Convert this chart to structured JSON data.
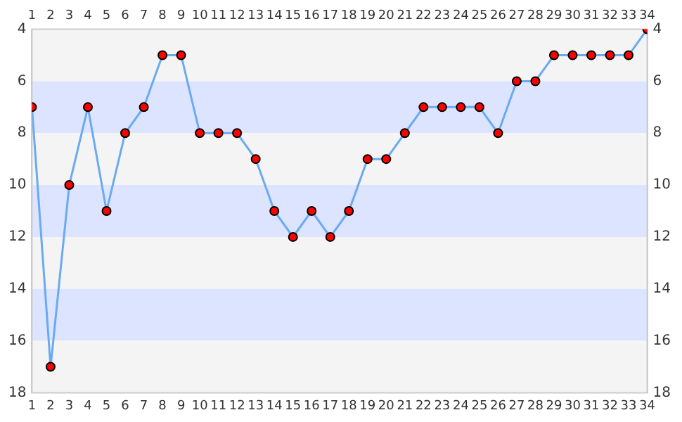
{
  "chart_data": {
    "type": "line",
    "x": [
      1,
      2,
      3,
      4,
      5,
      6,
      7,
      8,
      9,
      10,
      11,
      12,
      13,
      14,
      15,
      16,
      17,
      18,
      19,
      20,
      21,
      22,
      23,
      24,
      25,
      26,
      27,
      28,
      29,
      30,
      31,
      32,
      33,
      34
    ],
    "series": [
      {
        "color": "#6aaaf2",
        "colors": [
          "#ff0000",
          "#ff0000",
          "#ff0000",
          "#ff0000",
          "#ff0000",
          "#ff0000",
          "#ff0000",
          "#ff0000",
          "#ff0000",
          "#ff0000",
          "#ff0000",
          "#ff0000",
          "#ff0000",
          "#ff0000",
          "#ff0000",
          "#ff0000",
          "#ff0000",
          "#ff0000",
          "#ff0000",
          "#ff0000",
          "#ff0000",
          "#ff0000",
          "#ff0000",
          "#ff0000",
          "#ff0000",
          "#ff0000",
          "#ff0000",
          "#ff0000",
          "#ff0000",
          "#ff0000",
          "#ff0000",
          "#ff0000",
          "#ff0000",
          "#ff0000"
        ],
        "values": [
          7,
          17,
          10,
          7,
          11,
          8,
          7,
          5,
          5,
          8,
          8,
          8,
          9,
          11,
          12,
          11,
          12,
          11,
          9,
          9,
          8,
          7,
          7,
          7,
          7,
          8,
          6,
          6,
          5,
          5,
          5,
          5,
          5,
          4
        ]
      }
    ],
    "xlim": [
      1,
      34
    ],
    "xticks": [
      1,
      2,
      3,
      4,
      5,
      6,
      7,
      8,
      9,
      10,
      11,
      12,
      13,
      14,
      15,
      16,
      17,
      18,
      19,
      20,
      21,
      22,
      23,
      24,
      25,
      26,
      27,
      28,
      29,
      30,
      31,
      32,
      33,
      34
    ],
    "x2lim": [
      1,
      34
    ],
    "x2ticks": [
      1,
      2,
      3,
      4,
      5,
      6,
      7,
      8,
      9,
      10,
      11,
      12,
      13,
      14,
      15,
      16,
      17,
      18,
      19,
      20,
      21,
      22,
      23,
      24,
      25,
      26,
      27,
      28,
      29,
      30,
      31,
      32,
      33,
      34
    ],
    "ylim": [
      18,
      4
    ],
    "yticks": [
      4,
      6,
      8,
      10,
      12,
      14,
      16,
      18
    ],
    "y2lim": [
      18,
      4
    ],
    "y2ticks": [
      4,
      6,
      8,
      10,
      12,
      14,
      16,
      18
    ],
    "bands": [
      {
        "axis": "y",
        "from": 4,
        "to": 6,
        "color": "#f4f4f4"
      },
      {
        "axis": "y",
        "from": 6,
        "to": 8,
        "color": "#dde4ff"
      },
      {
        "axis": "y",
        "from": 8,
        "to": 10,
        "color": "#f4f4f4"
      },
      {
        "axis": "y",
        "from": 10,
        "to": 12,
        "color": "#dde4ff"
      },
      {
        "axis": "y",
        "from": 12,
        "to": 14,
        "color": "#f4f4f4"
      },
      {
        "axis": "y",
        "from": 14,
        "to": 16,
        "color": "#dde4ff"
      },
      {
        "axis": "y",
        "from": 16,
        "to": 18,
        "color": "#f4f4f4"
      }
    ],
    "grid": false,
    "legend": false,
    "marker": "circle",
    "line_style": "solid"
  }
}
